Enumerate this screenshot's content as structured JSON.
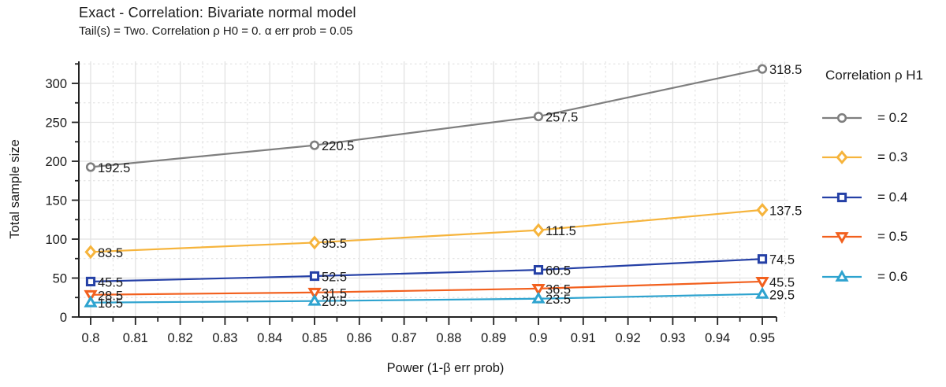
{
  "header": {
    "title": "Exact - Correlation: Bivariate normal model",
    "subtitle": "Tail(s) = Two. Correlation ρ H0 = 0. α err prob = 0.05"
  },
  "chart_data": {
    "type": "line",
    "title": "Exact - Correlation: Bivariate normal model",
    "subtitle": "Tail(s) = Two. Correlation ρ H0 = 0. α err prob = 0.05",
    "xlabel": "Power (1-β err prob)",
    "ylabel": "Total sample size",
    "x": [
      0.8,
      0.85,
      0.9,
      0.95
    ],
    "xlim": [
      0.8,
      0.955
    ],
    "ylim": [
      0,
      325
    ],
    "x_tick_labels": [
      "0.8",
      "0.81",
      "0.82",
      "0.83",
      "0.84",
      "0.85",
      "0.86",
      "0.87",
      "0.88",
      "0.89",
      "0.9",
      "0.91",
      "0.92",
      "0.93",
      "0.94",
      "0.95"
    ],
    "y_tick_labels": [
      "0",
      "50",
      "100",
      "150",
      "200",
      "250",
      "300"
    ],
    "grid": "major solid, minor dashed",
    "legend_title": "Correlation ρ H1",
    "legend_position": "right",
    "point_labels_shown": true,
    "series": [
      {
        "name": "rho-0.2",
        "label": "= 0.2",
        "color": "#7f7f7f",
        "marker": "circle",
        "values": [
          192.5,
          220.5,
          257.5,
          318.5
        ]
      },
      {
        "name": "rho-0.3",
        "label": "= 0.3",
        "color": "#f6b43c",
        "marker": "diamond",
        "values": [
          83.5,
          95.5,
          111.5,
          137.5
        ]
      },
      {
        "name": "rho-0.4",
        "label": "= 0.4",
        "color": "#2540a6",
        "marker": "square",
        "values": [
          45.5,
          52.5,
          60.5,
          74.5
        ]
      },
      {
        "name": "rho-0.5",
        "label": "= 0.5",
        "color": "#f2601e",
        "marker": "triangle-down",
        "values": [
          28.5,
          31.5,
          36.5,
          45.5
        ]
      },
      {
        "name": "rho-0.6",
        "label": "= 0.6",
        "color": "#2ea3cf",
        "marker": "triangle-up",
        "values": [
          18.5,
          20.5,
          23.5,
          29.5
        ]
      }
    ],
    "colors": {
      "axis": "#222222",
      "text": "#1a1a1a",
      "grid_major": "#e2e2e2",
      "grid_minor": "#dedede",
      "background": "#ffffff"
    }
  }
}
